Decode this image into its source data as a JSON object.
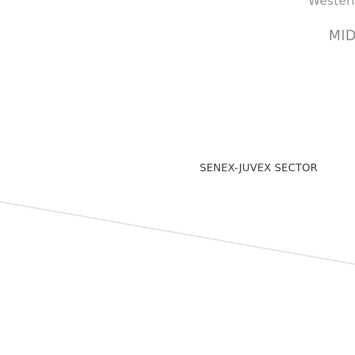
{
  "map": {
    "labels": {
      "region_partial": "Western",
      "region_mid": "MID",
      "sector": "SENEX-JUVEX SECTOR"
    },
    "colors": {
      "background": "#ffffff",
      "region_text": "#8a8a8a",
      "sector_text": "#3a3a3a",
      "boundary_line": "#e3e3e3"
    }
  }
}
